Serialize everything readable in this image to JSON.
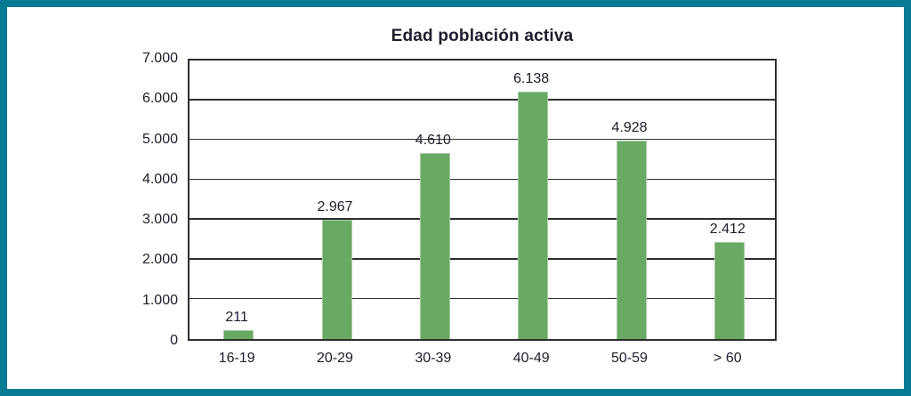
{
  "window": {
    "border_color": "#077b94",
    "background": "#ffffff"
  },
  "chart_data": {
    "type": "bar",
    "title": "Edad población activa",
    "categories": [
      "16-19",
      "20-29",
      "30-39",
      "40-49",
      "50-59",
      "> 60"
    ],
    "values": [
      211,
      2967,
      4610,
      6138,
      4928,
      2412
    ],
    "value_labels": [
      "211",
      "2.967",
      "4.610",
      "6.138",
      "4.928",
      "2.412"
    ],
    "y_ticks": [
      "0",
      "1.000",
      "2.000",
      "3.000",
      "4.000",
      "5.000",
      "6.000",
      "7.000"
    ],
    "ylim": [
      0,
      7000
    ],
    "grid": true,
    "legend_position": "none",
    "bar_color": "#68aa64",
    "text_color": "#1c1c2b",
    "axis_color": "#2e2e2e"
  }
}
